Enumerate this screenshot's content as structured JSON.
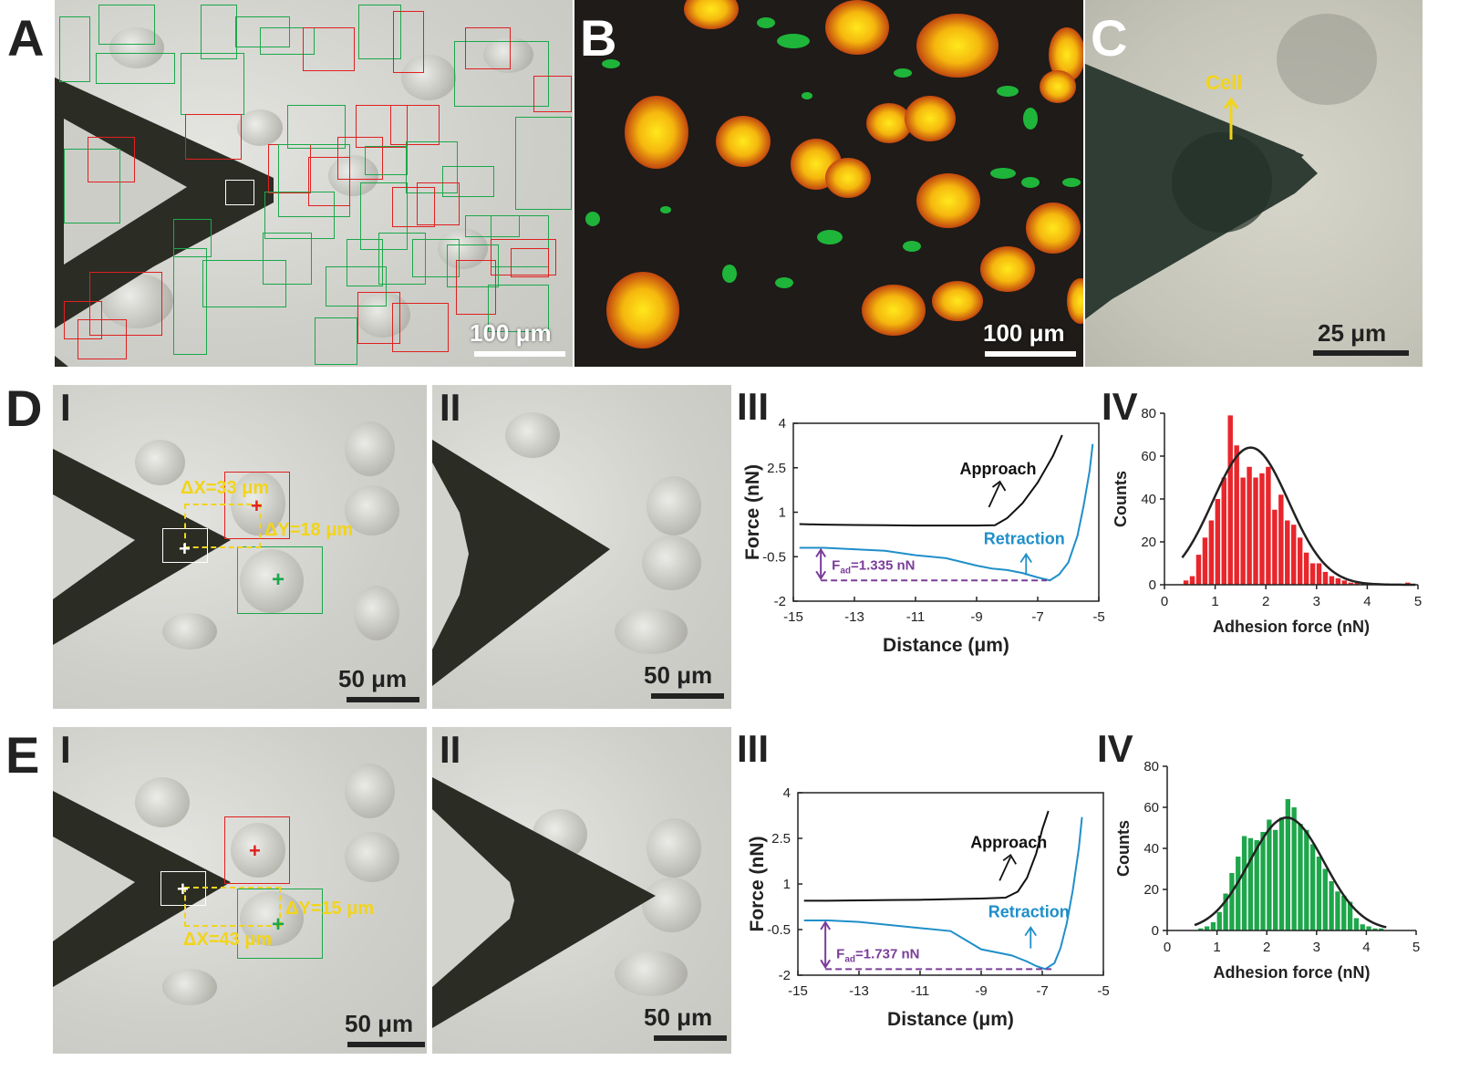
{
  "panels": {
    "A": {
      "label": "A",
      "scale_bar": "100 μm"
    },
    "B": {
      "label": "B",
      "scale_bar": "100 μm"
    },
    "C": {
      "label": "C",
      "scale_bar": "25 μm",
      "arrow_label": "Cell"
    },
    "D": {
      "label": "D",
      "sub_I": "I",
      "sub_II": "II",
      "sub_III": "III",
      "sub_IV": "IV",
      "scale_I": "50 μm",
      "scale_II": "50 μm",
      "dx_label": "ΔX=33 μm",
      "dy_label": "ΔY=18 μm"
    },
    "E": {
      "label": "E",
      "sub_I": "I",
      "sub_II": "II",
      "sub_III": "III",
      "sub_IV": "IV",
      "scale_I": "50 μm",
      "scale_II": "50 μm",
      "dx_label": "ΔX=43 μm",
      "dy_label": "ΔY=15 μm"
    }
  },
  "colors": {
    "red_box": "#e02020",
    "green_box": "#1aa84a",
    "approach": "#111111",
    "retraction": "#1f8fc9",
    "fad": "#7a3d9a",
    "hist_D": "#e8262b",
    "hist_E": "#1ea64b",
    "yellow": "#f2d41a"
  },
  "chart_data": [
    {
      "id": "D-III",
      "type": "line",
      "xlabel": "Distance (μm)",
      "ylabel": "Force (nN)",
      "xlim": [
        -15,
        -5
      ],
      "ylim": [
        -2,
        4
      ],
      "xticks": [
        "-15",
        "-13",
        "-11",
        "-9",
        "-7",
        "-5"
      ],
      "yticks": [
        "4",
        "2.5",
        "1",
        "-0.5",
        "-2"
      ],
      "series": [
        {
          "name": "Approach",
          "x": [
            -14.8,
            -14,
            -13,
            -12,
            -11,
            -10,
            -9,
            -8.4,
            -8,
            -7.5,
            -7,
            -6.5,
            -6.2
          ],
          "y": [
            0.6,
            0.58,
            0.57,
            0.56,
            0.55,
            0.55,
            0.55,
            0.56,
            0.8,
            1.3,
            2.0,
            2.9,
            3.6
          ]
        },
        {
          "name": "Retraction",
          "x": [
            -14.8,
            -14,
            -13,
            -12,
            -11,
            -10,
            -9,
            -8.5,
            -8,
            -7.5,
            -7,
            -6.6,
            -6.3,
            -6,
            -5.7,
            -5.5,
            -5.3,
            -5.2
          ],
          "y": [
            -0.2,
            -0.2,
            -0.25,
            -0.3,
            -0.45,
            -0.55,
            -0.8,
            -0.9,
            -0.95,
            -1.05,
            -1.2,
            -1.3,
            -1.1,
            -0.7,
            0.2,
            1.2,
            2.4,
            3.3
          ]
        }
      ],
      "annotations": {
        "approach": "Approach",
        "retraction": "Retraction",
        "fad": "F",
        "fad_sub": "ad",
        "fad_value": "=1.335 nN"
      },
      "fad_baseline": -0.2,
      "fad_min": -1.3
    },
    {
      "id": "D-IV",
      "type": "bar",
      "xlabel": "Adhesion force (nN)",
      "ylabel": "Counts",
      "xlim": [
        0,
        5
      ],
      "ylim": [
        0,
        80
      ],
      "xticks": [
        "0",
        "1",
        "2",
        "3",
        "4",
        "5"
      ],
      "yticks": [
        "0",
        "20",
        "40",
        "60",
        "80"
      ],
      "bin_width": 0.125,
      "bin_starts": [
        0.375,
        0.5,
        0.625,
        0.75,
        0.875,
        1.0,
        1.125,
        1.25,
        1.375,
        1.5,
        1.625,
        1.75,
        1.875,
        2.0,
        2.125,
        2.25,
        2.375,
        2.5,
        2.625,
        2.75,
        2.875,
        3.0,
        3.125,
        3.25,
        3.375,
        3.5,
        3.625,
        3.75,
        3.875,
        4.0,
        4.125,
        4.25,
        4.375,
        4.5,
        4.625,
        4.75
      ],
      "values": [
        2,
        4,
        14,
        22,
        30,
        40,
        50,
        79,
        65,
        50,
        55,
        50,
        52,
        55,
        35,
        42,
        30,
        28,
        22,
        15,
        10,
        10,
        6,
        4,
        3,
        2,
        1,
        1,
        1,
        0,
        0,
        0,
        0,
        0,
        0,
        1
      ],
      "fit": {
        "mu": 1.7,
        "sigma": 0.75,
        "peak": 64,
        "x_start": 0.35,
        "x_end": 4.95
      }
    },
    {
      "id": "E-III",
      "type": "line",
      "xlabel": "Distance (μm)",
      "ylabel": "Force (nN)",
      "xlim": [
        -15,
        -5
      ],
      "ylim": [
        -2,
        4
      ],
      "xticks": [
        "-15",
        "-13",
        "-11",
        "-9",
        "-7",
        "-5"
      ],
      "yticks": [
        "4",
        "2.5",
        "1",
        "-0.5",
        "-2"
      ],
      "series": [
        {
          "name": "Approach",
          "x": [
            -14.8,
            -14,
            -13,
            -12,
            -11,
            -10,
            -9,
            -8.2,
            -7.8,
            -7.5,
            -7.2,
            -7,
            -6.8
          ],
          "y": [
            0.45,
            0.45,
            0.46,
            0.47,
            0.48,
            0.5,
            0.52,
            0.55,
            0.75,
            1.2,
            2.0,
            2.8,
            3.4
          ]
        },
        {
          "name": "Retraction",
          "x": [
            -14.8,
            -14,
            -13,
            -12,
            -11,
            -10,
            -9.5,
            -9,
            -8.5,
            -8,
            -7.5,
            -7.2,
            -6.9,
            -6.6,
            -6.4,
            -6.2,
            -6,
            -5.8,
            -5.7
          ],
          "y": [
            -0.2,
            -0.2,
            -0.25,
            -0.35,
            -0.45,
            -0.55,
            -0.85,
            -1.15,
            -1.25,
            -1.35,
            -1.55,
            -1.7,
            -1.8,
            -1.6,
            -1.1,
            -0.3,
            0.8,
            2.2,
            3.2
          ]
        }
      ],
      "annotations": {
        "approach": "Approach",
        "retraction": "Retraction",
        "fad": "F",
        "fad_sub": "ad",
        "fad_value": "=1.737 nN"
      },
      "fad_baseline": -0.2,
      "fad_min": -1.8
    },
    {
      "id": "E-IV",
      "type": "bar",
      "xlabel": "Adhesion force (nN)",
      "ylabel": "Counts",
      "xlim": [
        0,
        5
      ],
      "ylim": [
        0,
        80
      ],
      "xticks": [
        "0",
        "1",
        "2",
        "3",
        "4",
        "5"
      ],
      "yticks": [
        "0",
        "20",
        "40",
        "60",
        "80"
      ],
      "bin_width": 0.125,
      "bin_starts": [
        0.625,
        0.75,
        0.875,
        1.0,
        1.125,
        1.25,
        1.375,
        1.5,
        1.625,
        1.75,
        1.875,
        2.0,
        2.125,
        2.25,
        2.375,
        2.5,
        2.625,
        2.75,
        2.875,
        3.0,
        3.125,
        3.25,
        3.375,
        3.5,
        3.625,
        3.75,
        3.875,
        4.0,
        4.125,
        4.25
      ],
      "values": [
        1,
        2,
        4,
        9,
        18,
        28,
        36,
        46,
        45,
        44,
        48,
        54,
        49,
        55,
        64,
        60,
        52,
        49,
        42,
        36,
        30,
        24,
        19,
        17,
        14,
        6,
        3,
        2,
        1,
        1
      ],
      "fit": {
        "mu": 2.4,
        "sigma": 0.75,
        "peak": 55,
        "x_start": 0.55,
        "x_end": 4.4
      }
    }
  ]
}
